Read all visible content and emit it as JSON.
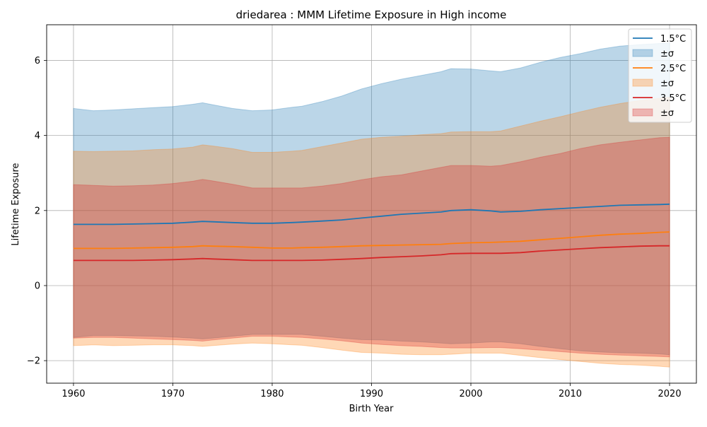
{
  "chart_data": {
    "type": "area",
    "title": "driedarea : MMM Lifetime Exposure in High income",
    "xlabel": "Birth Year",
    "ylabel": "Lifetime Exposure",
    "xlim": [
      1957.3,
      2022.7
    ],
    "ylim": [
      -2.6,
      6.95
    ],
    "xticks": [
      1960,
      1970,
      1980,
      1990,
      2000,
      2010,
      2020
    ],
    "xtick_labels": [
      "1960",
      "1970",
      "1980",
      "1990",
      "2000",
      "2010",
      "2020"
    ],
    "yticks": [
      -2,
      0,
      2,
      4,
      6
    ],
    "ytick_labels": [
      "−2",
      "0",
      "2",
      "4",
      "6"
    ],
    "grid": true,
    "legend_position": "top-right",
    "x": [
      1960,
      1962,
      1964,
      1966,
      1968,
      1970,
      1972,
      1973,
      1974,
      1976,
      1978,
      1980,
      1982,
      1983,
      1985,
      1987,
      1989,
      1991,
      1993,
      1995,
      1997,
      1998,
      2000,
      2002,
      2003,
      2005,
      2007,
      2009,
      2011,
      2013,
      2015,
      2017,
      2019,
      2020
    ],
    "series": [
      {
        "name": "1.5°C",
        "band_label": "±σ",
        "color": "#1f77b4",
        "band_color": "#1f77b4",
        "band_opacity": 0.3,
        "mean": [
          1.63,
          1.63,
          1.63,
          1.64,
          1.65,
          1.66,
          1.69,
          1.71,
          1.7,
          1.68,
          1.66,
          1.66,
          1.68,
          1.69,
          1.72,
          1.75,
          1.8,
          1.85,
          1.9,
          1.93,
          1.96,
          2.0,
          2.02,
          1.99,
          1.96,
          1.98,
          2.02,
          2.05,
          2.08,
          2.11,
          2.14,
          2.15,
          2.16,
          2.17
        ],
        "upper": [
          4.72,
          4.66,
          4.68,
          4.71,
          4.74,
          4.77,
          4.83,
          4.87,
          4.82,
          4.72,
          4.66,
          4.68,
          4.75,
          4.78,
          4.9,
          5.05,
          5.24,
          5.38,
          5.5,
          5.6,
          5.7,
          5.78,
          5.77,
          5.72,
          5.7,
          5.8,
          5.95,
          6.08,
          6.18,
          6.3,
          6.38,
          6.42,
          6.45,
          6.47
        ],
        "lower": [
          -1.38,
          -1.33,
          -1.33,
          -1.34,
          -1.35,
          -1.37,
          -1.4,
          -1.42,
          -1.4,
          -1.35,
          -1.3,
          -1.3,
          -1.3,
          -1.3,
          -1.35,
          -1.4,
          -1.44,
          -1.45,
          -1.48,
          -1.5,
          -1.53,
          -1.55,
          -1.53,
          -1.5,
          -1.5,
          -1.55,
          -1.62,
          -1.68,
          -1.74,
          -1.77,
          -1.79,
          -1.8,
          -1.82,
          -1.84
        ]
      },
      {
        "name": "2.5°C",
        "band_label": "±σ",
        "color": "#ff7f0e",
        "band_color": "#ff7f0e",
        "band_opacity": 0.3,
        "mean": [
          0.99,
          0.99,
          0.99,
          1.0,
          1.01,
          1.02,
          1.04,
          1.06,
          1.05,
          1.04,
          1.02,
          1.0,
          1.0,
          1.01,
          1.02,
          1.04,
          1.06,
          1.07,
          1.08,
          1.09,
          1.1,
          1.12,
          1.14,
          1.15,
          1.16,
          1.18,
          1.22,
          1.26,
          1.3,
          1.34,
          1.37,
          1.39,
          1.42,
          1.43
        ],
        "upper": [
          3.58,
          3.57,
          3.58,
          3.59,
          3.62,
          3.64,
          3.69,
          3.75,
          3.72,
          3.65,
          3.55,
          3.55,
          3.58,
          3.6,
          3.7,
          3.8,
          3.9,
          3.95,
          3.98,
          4.02,
          4.05,
          4.09,
          4.1,
          4.1,
          4.12,
          4.25,
          4.38,
          4.5,
          4.63,
          4.75,
          4.85,
          4.93,
          4.99,
          5.02
        ],
        "lower": [
          -1.6,
          -1.58,
          -1.6,
          -1.59,
          -1.58,
          -1.58,
          -1.6,
          -1.62,
          -1.6,
          -1.56,
          -1.53,
          -1.55,
          -1.58,
          -1.59,
          -1.65,
          -1.72,
          -1.78,
          -1.8,
          -1.83,
          -1.84,
          -1.84,
          -1.83,
          -1.8,
          -1.8,
          -1.8,
          -1.86,
          -1.92,
          -1.97,
          -2.02,
          -2.07,
          -2.1,
          -2.12,
          -2.15,
          -2.17
        ]
      },
      {
        "name": "3.5°C",
        "band_label": "±σ",
        "color": "#d62728",
        "band_color": "#d62728",
        "band_opacity": 0.3,
        "mean": [
          0.67,
          0.67,
          0.67,
          0.67,
          0.68,
          0.69,
          0.71,
          0.72,
          0.71,
          0.69,
          0.67,
          0.67,
          0.67,
          0.67,
          0.68,
          0.7,
          0.72,
          0.75,
          0.77,
          0.79,
          0.82,
          0.85,
          0.86,
          0.86,
          0.86,
          0.88,
          0.92,
          0.95,
          0.98,
          1.01,
          1.03,
          1.05,
          1.06,
          1.06
        ],
        "upper": [
          2.69,
          2.67,
          2.65,
          2.66,
          2.68,
          2.72,
          2.78,
          2.83,
          2.79,
          2.7,
          2.6,
          2.6,
          2.6,
          2.6,
          2.65,
          2.72,
          2.82,
          2.9,
          2.95,
          3.05,
          3.15,
          3.2,
          3.2,
          3.18,
          3.2,
          3.3,
          3.42,
          3.52,
          3.65,
          3.75,
          3.82,
          3.88,
          3.94,
          3.95
        ],
        "lower": [
          -1.4,
          -1.38,
          -1.38,
          -1.4,
          -1.42,
          -1.44,
          -1.46,
          -1.48,
          -1.45,
          -1.4,
          -1.35,
          -1.35,
          -1.37,
          -1.38,
          -1.42,
          -1.47,
          -1.53,
          -1.57,
          -1.6,
          -1.62,
          -1.65,
          -1.66,
          -1.66,
          -1.65,
          -1.65,
          -1.68,
          -1.72,
          -1.76,
          -1.8,
          -1.83,
          -1.85,
          -1.87,
          -1.89,
          -1.9
        ]
      }
    ]
  }
}
